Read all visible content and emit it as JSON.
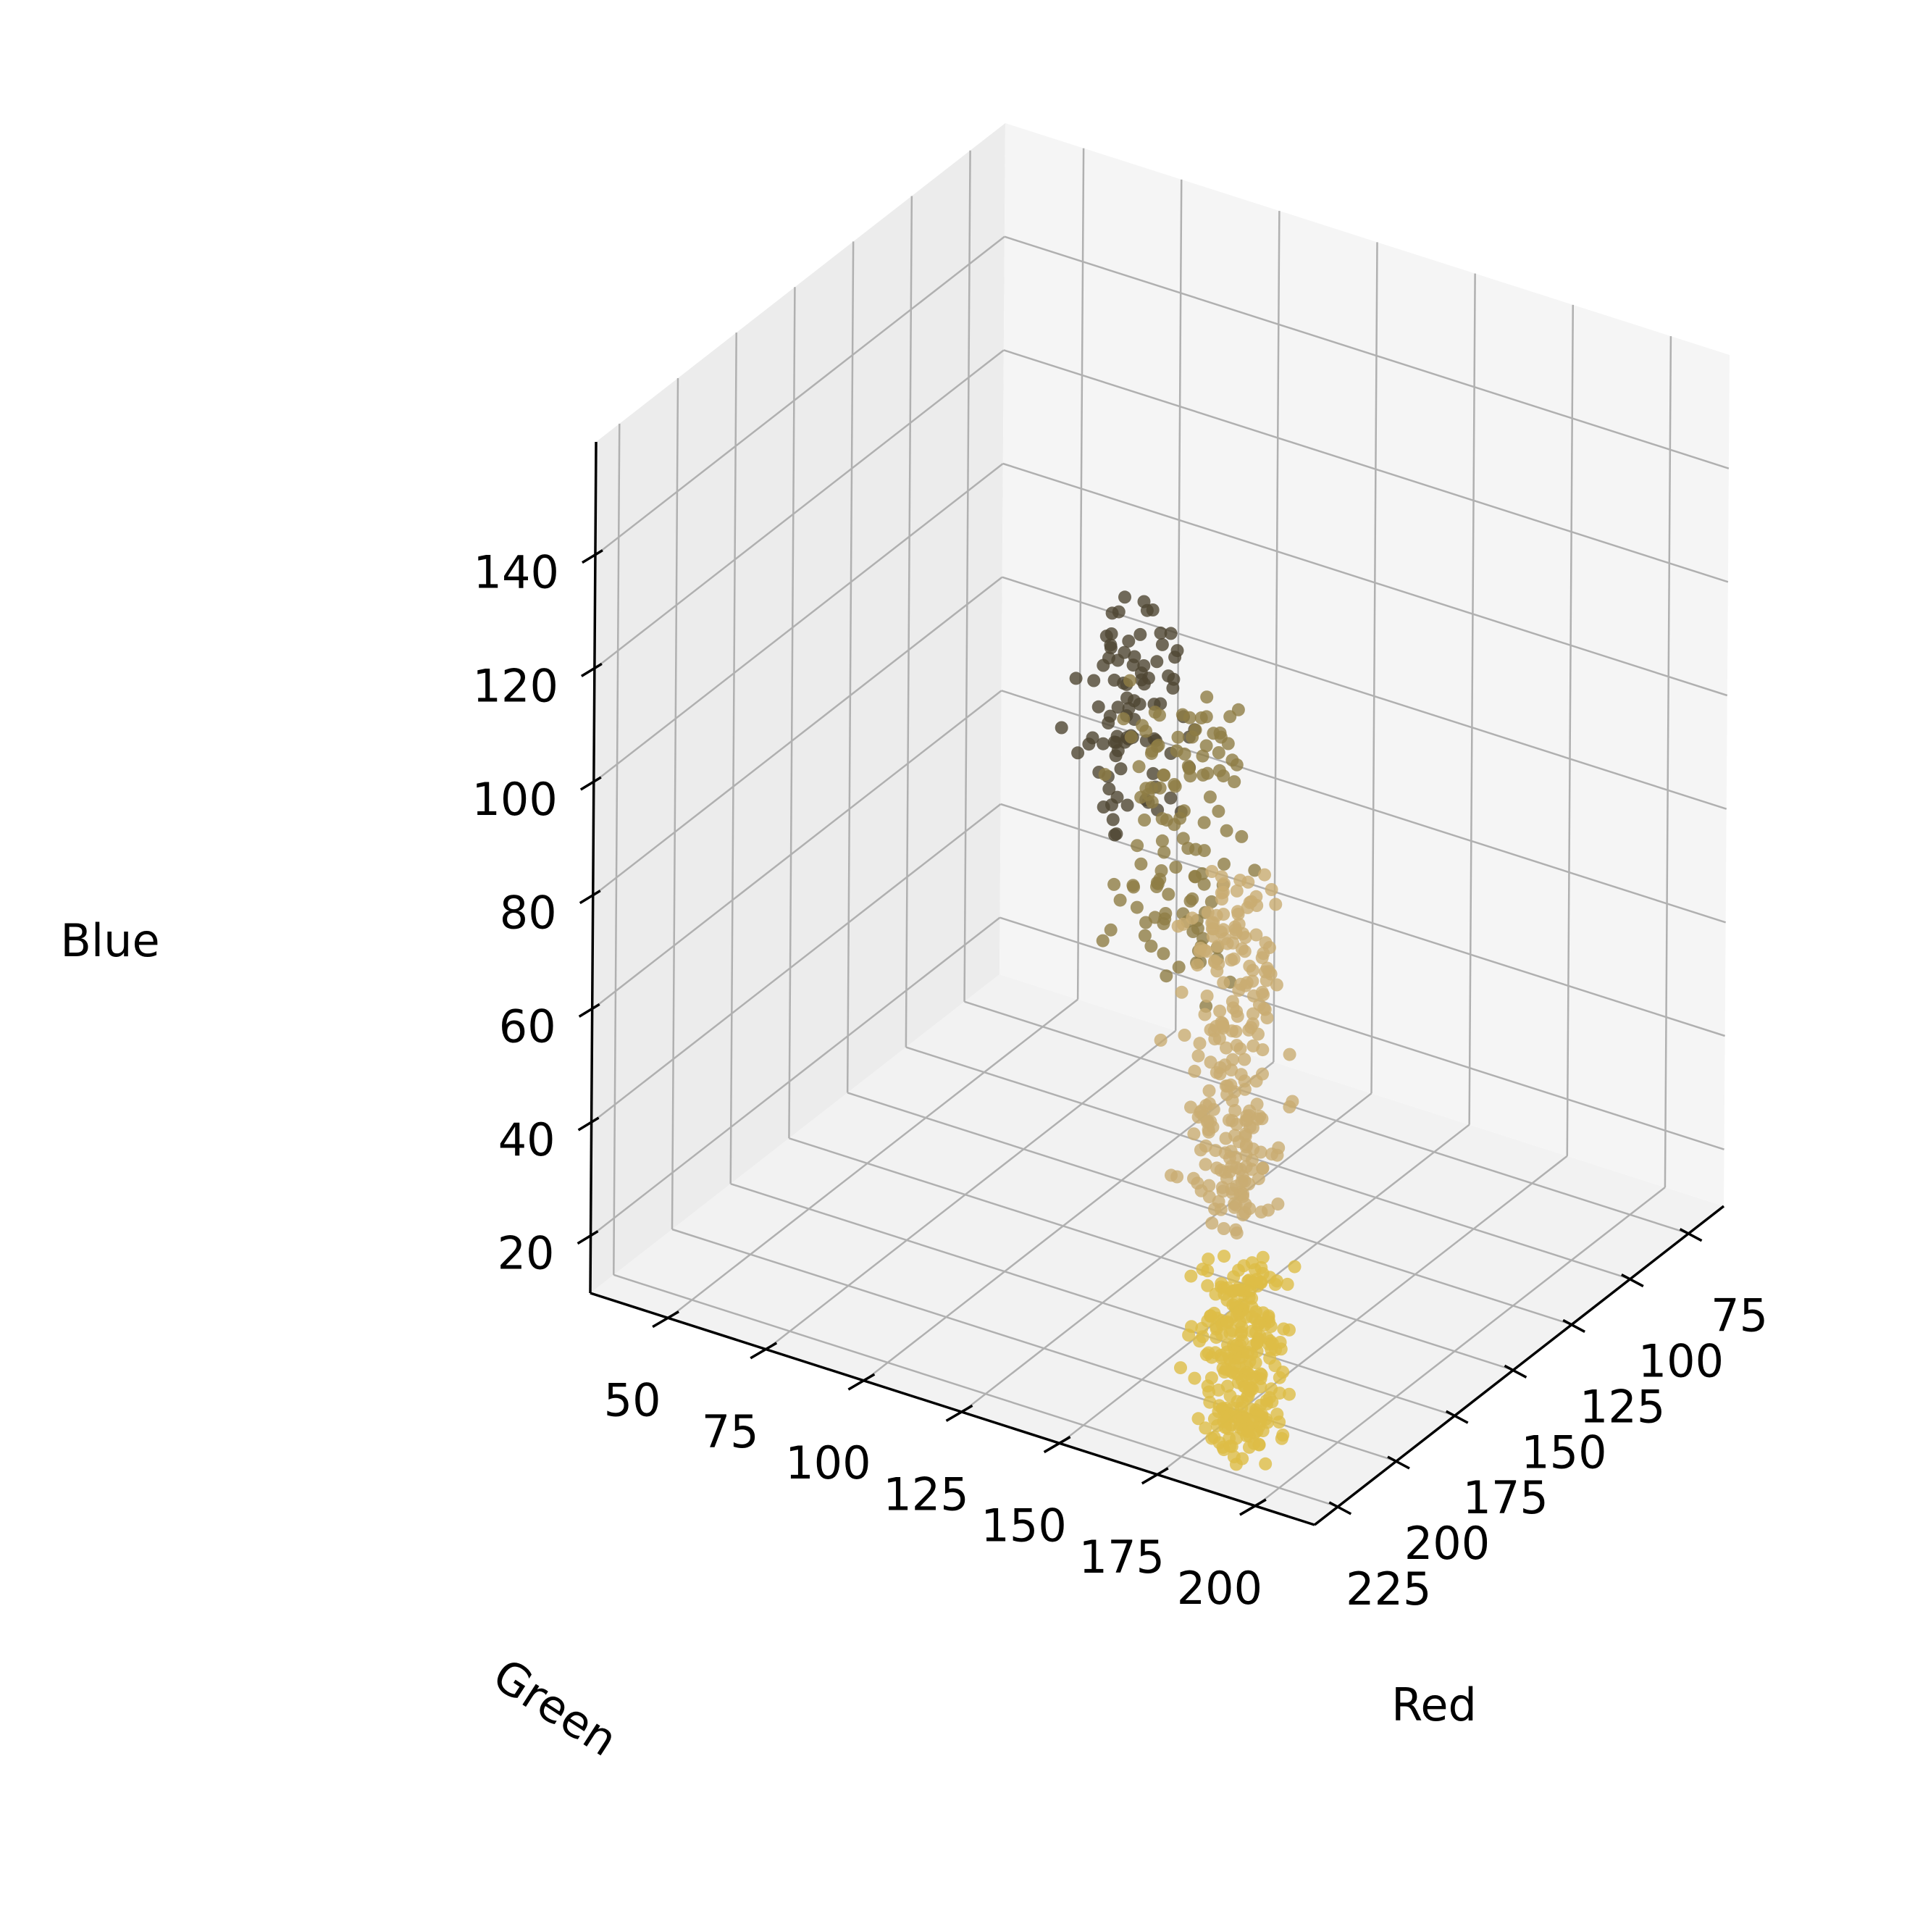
{
  "chart_data": {
    "type": "scatter",
    "projection": "3d",
    "xlabel": "Red",
    "ylabel": "Green",
    "zlabel": "Blue",
    "xlim": [
      60,
      235
    ],
    "ylim": [
      30,
      215
    ],
    "zlim": [
      10,
      160
    ],
    "x_ticks": [
      "75",
      "100",
      "125",
      "150",
      "175",
      "200",
      "225"
    ],
    "y_ticks": [
      "50",
      "75",
      "100",
      "125",
      "150",
      "175",
      "200"
    ],
    "z_ticks": [
      "20",
      "40",
      "60",
      "80",
      "100",
      "120",
      "140"
    ],
    "grid": true,
    "legend": null,
    "pane_colors": {
      "floor": "#f2f2f2",
      "left_wall": "#ececec",
      "right_wall": "#f5f5f5"
    },
    "grid_color": "#b0b0b0",
    "clusters": [
      {
        "label": "yellow",
        "color": "#ddbd46",
        "red": [
          205,
          235
        ],
        "green": [
          175,
          200
        ],
        "blue": [
          12,
          45
        ],
        "count": 260
      },
      {
        "label": "tan",
        "color": "#c9ad72",
        "red": [
          185,
          220
        ],
        "green": [
          160,
          190
        ],
        "blue": [
          45,
          105
        ],
        "count": 240
      },
      {
        "label": "olive",
        "color": "#8f7d45",
        "red": [
          130,
          170
        ],
        "green": [
          110,
          150
        ],
        "blue": [
          60,
          110
        ],
        "count": 120
      },
      {
        "label": "dark",
        "color": "#4f4632",
        "red": [
          70,
          110
        ],
        "green": [
          65,
          95
        ],
        "blue": [
          55,
          95
        ],
        "count": 90
      }
    ]
  }
}
